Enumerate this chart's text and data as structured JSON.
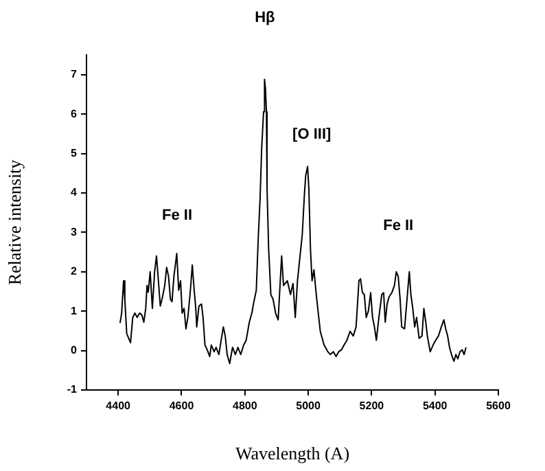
{
  "chart_data": {
    "type": "line",
    "xlabel": "Wavelength (A)",
    "ylabel": "Relative intensity",
    "x": [
      4406,
      4411,
      4417,
      4421,
      4427,
      4439,
      4446,
      4453,
      4460,
      4468,
      4475,
      4481,
      4487,
      4491,
      4495,
      4501,
      4508,
      4515,
      4521,
      4527,
      4533,
      4540,
      4547,
      4553,
      4559,
      4565,
      4570,
      4576,
      4585,
      4591,
      4597,
      4602,
      4608,
      4614,
      4620,
      4628,
      4634,
      4640,
      4645,
      4648,
      4655,
      4663,
      4668,
      4674,
      4681,
      4689,
      4694,
      4703,
      4709,
      4718,
      4725,
      4732,
      4738,
      4744,
      4752,
      4761,
      4770,
      4778,
      4787,
      4796,
      4804,
      4814,
      4822,
      4827,
      4836,
      4842,
      4848,
      4853,
      4859,
      4862,
      4865,
      4868,
      4870,
      4875,
      4882,
      4889,
      4897,
      4905,
      4916,
      4922,
      4934,
      4944,
      4952,
      4959,
      4966,
      4981,
      4988,
      4992,
      4998,
      5002,
      5007,
      5012,
      5018,
      5024,
      5030,
      5038,
      5050,
      5062,
      5070,
      5079,
      5088,
      5096,
      5105,
      5113,
      5122,
      5132,
      5142,
      5151,
      5160,
      5165,
      5171,
      5177,
      5183,
      5190,
      5197,
      5203,
      5209,
      5215,
      5223,
      5232,
      5238,
      5243,
      5249,
      5255,
      5264,
      5272,
      5278,
      5284,
      5290,
      5295,
      5304,
      5313,
      5319,
      5324,
      5330,
      5336,
      5342,
      5350,
      5359,
      5365,
      5371,
      5376,
      5385,
      5394,
      5402,
      5411,
      5420,
      5428,
      5434,
      5440,
      5446,
      5454,
      5460,
      5466,
      5472,
      5479,
      5486,
      5492,
      5498
    ],
    "values": [
      0.7,
      0.95,
      1.77,
      1.3,
      0.43,
      0.2,
      0.84,
      0.95,
      0.84,
      0.95,
      0.9,
      0.72,
      1.07,
      1.65,
      1.48,
      2.0,
      1.07,
      2.0,
      2.4,
      1.77,
      1.13,
      1.36,
      1.65,
      2.11,
      1.88,
      1.3,
      1.24,
      1.88,
      2.46,
      1.53,
      1.77,
      0.95,
      1.07,
      0.55,
      0.84,
      1.53,
      2.17,
      1.53,
      1.07,
      0.6,
      1.13,
      1.18,
      0.84,
      0.14,
      0.02,
      -0.15,
      0.14,
      -0.03,
      0.08,
      -0.1,
      0.26,
      0.6,
      0.37,
      -0.1,
      -0.33,
      0.08,
      -0.1,
      0.08,
      -0.1,
      0.14,
      0.26,
      0.72,
      0.95,
      1.18,
      1.53,
      2.81,
      3.86,
      5.13,
      6.06,
      6.88,
      6.64,
      6.06,
      4.09,
      2.58,
      1.42,
      1.3,
      0.95,
      0.78,
      2.4,
      1.65,
      1.77,
      1.42,
      1.7,
      0.84,
      1.77,
      2.93,
      3.97,
      4.44,
      4.67,
      4.09,
      2.58,
      1.77,
      2.05,
      1.53,
      1.07,
      0.49,
      0.14,
      -0.03,
      -0.1,
      -0.03,
      -0.15,
      -0.03,
      0.02,
      0.14,
      0.26,
      0.49,
      0.37,
      0.6,
      1.77,
      1.82,
      1.47,
      1.42,
      0.84,
      1.01,
      1.47,
      0.84,
      0.6,
      0.26,
      0.84,
      1.42,
      1.47,
      0.72,
      1.18,
      1.36,
      1.47,
      1.65,
      2.0,
      1.88,
      1.3,
      0.6,
      0.55,
      1.42,
      2.0,
      1.42,
      1.07,
      0.6,
      0.84,
      0.31,
      0.37,
      1.07,
      0.72,
      0.37,
      -0.03,
      0.14,
      0.26,
      0.37,
      0.6,
      0.78,
      0.55,
      0.37,
      0.08,
      -0.15,
      -0.27,
      -0.1,
      -0.21,
      -0.03,
      0.02,
      -0.1,
      0.08
    ],
    "color": "#000000",
    "xlim": [
      4300,
      5600
    ],
    "xticks": [
      4400,
      4600,
      4800,
      5000,
      5200,
      5400,
      5600
    ],
    "ylim": [
      -1,
      7.5
    ],
    "yticks": [
      -1,
      0,
      1,
      2,
      3,
      4,
      5,
      6,
      7
    ],
    "grid": false,
    "legend": false,
    "marker": "none",
    "line_style": "solid",
    "annotations": [
      "Hβ",
      "[O III]",
      "Fe II",
      "Fe II"
    ]
  }
}
